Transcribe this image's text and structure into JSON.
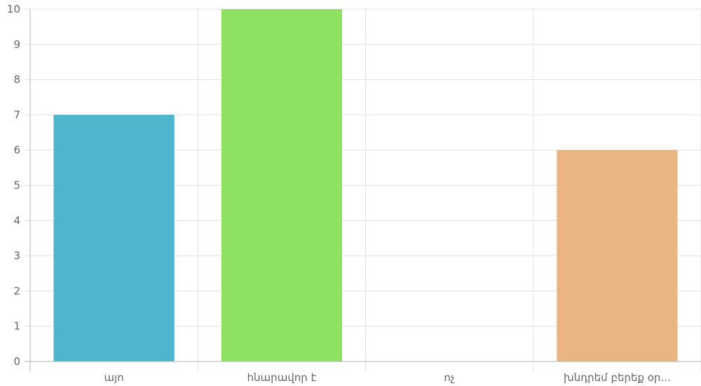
{
  "chart_data": {
    "type": "bar",
    "categories": [
      "այո",
      "հնարավոր է",
      "ոչ",
      "խնդրեմ բերեք օր..."
    ],
    "values": [
      7,
      10,
      0,
      6
    ],
    "bar_colors": [
      "#4db6cc",
      "#8fe163",
      "#d9d9d9",
      "#e9b583"
    ],
    "ylim": [
      0,
      10
    ],
    "y_ticks": [
      "0",
      "1",
      "2",
      "3",
      "4",
      "5",
      "6",
      "7",
      "8",
      "9",
      "10"
    ],
    "grid": true,
    "legend": "none"
  }
}
